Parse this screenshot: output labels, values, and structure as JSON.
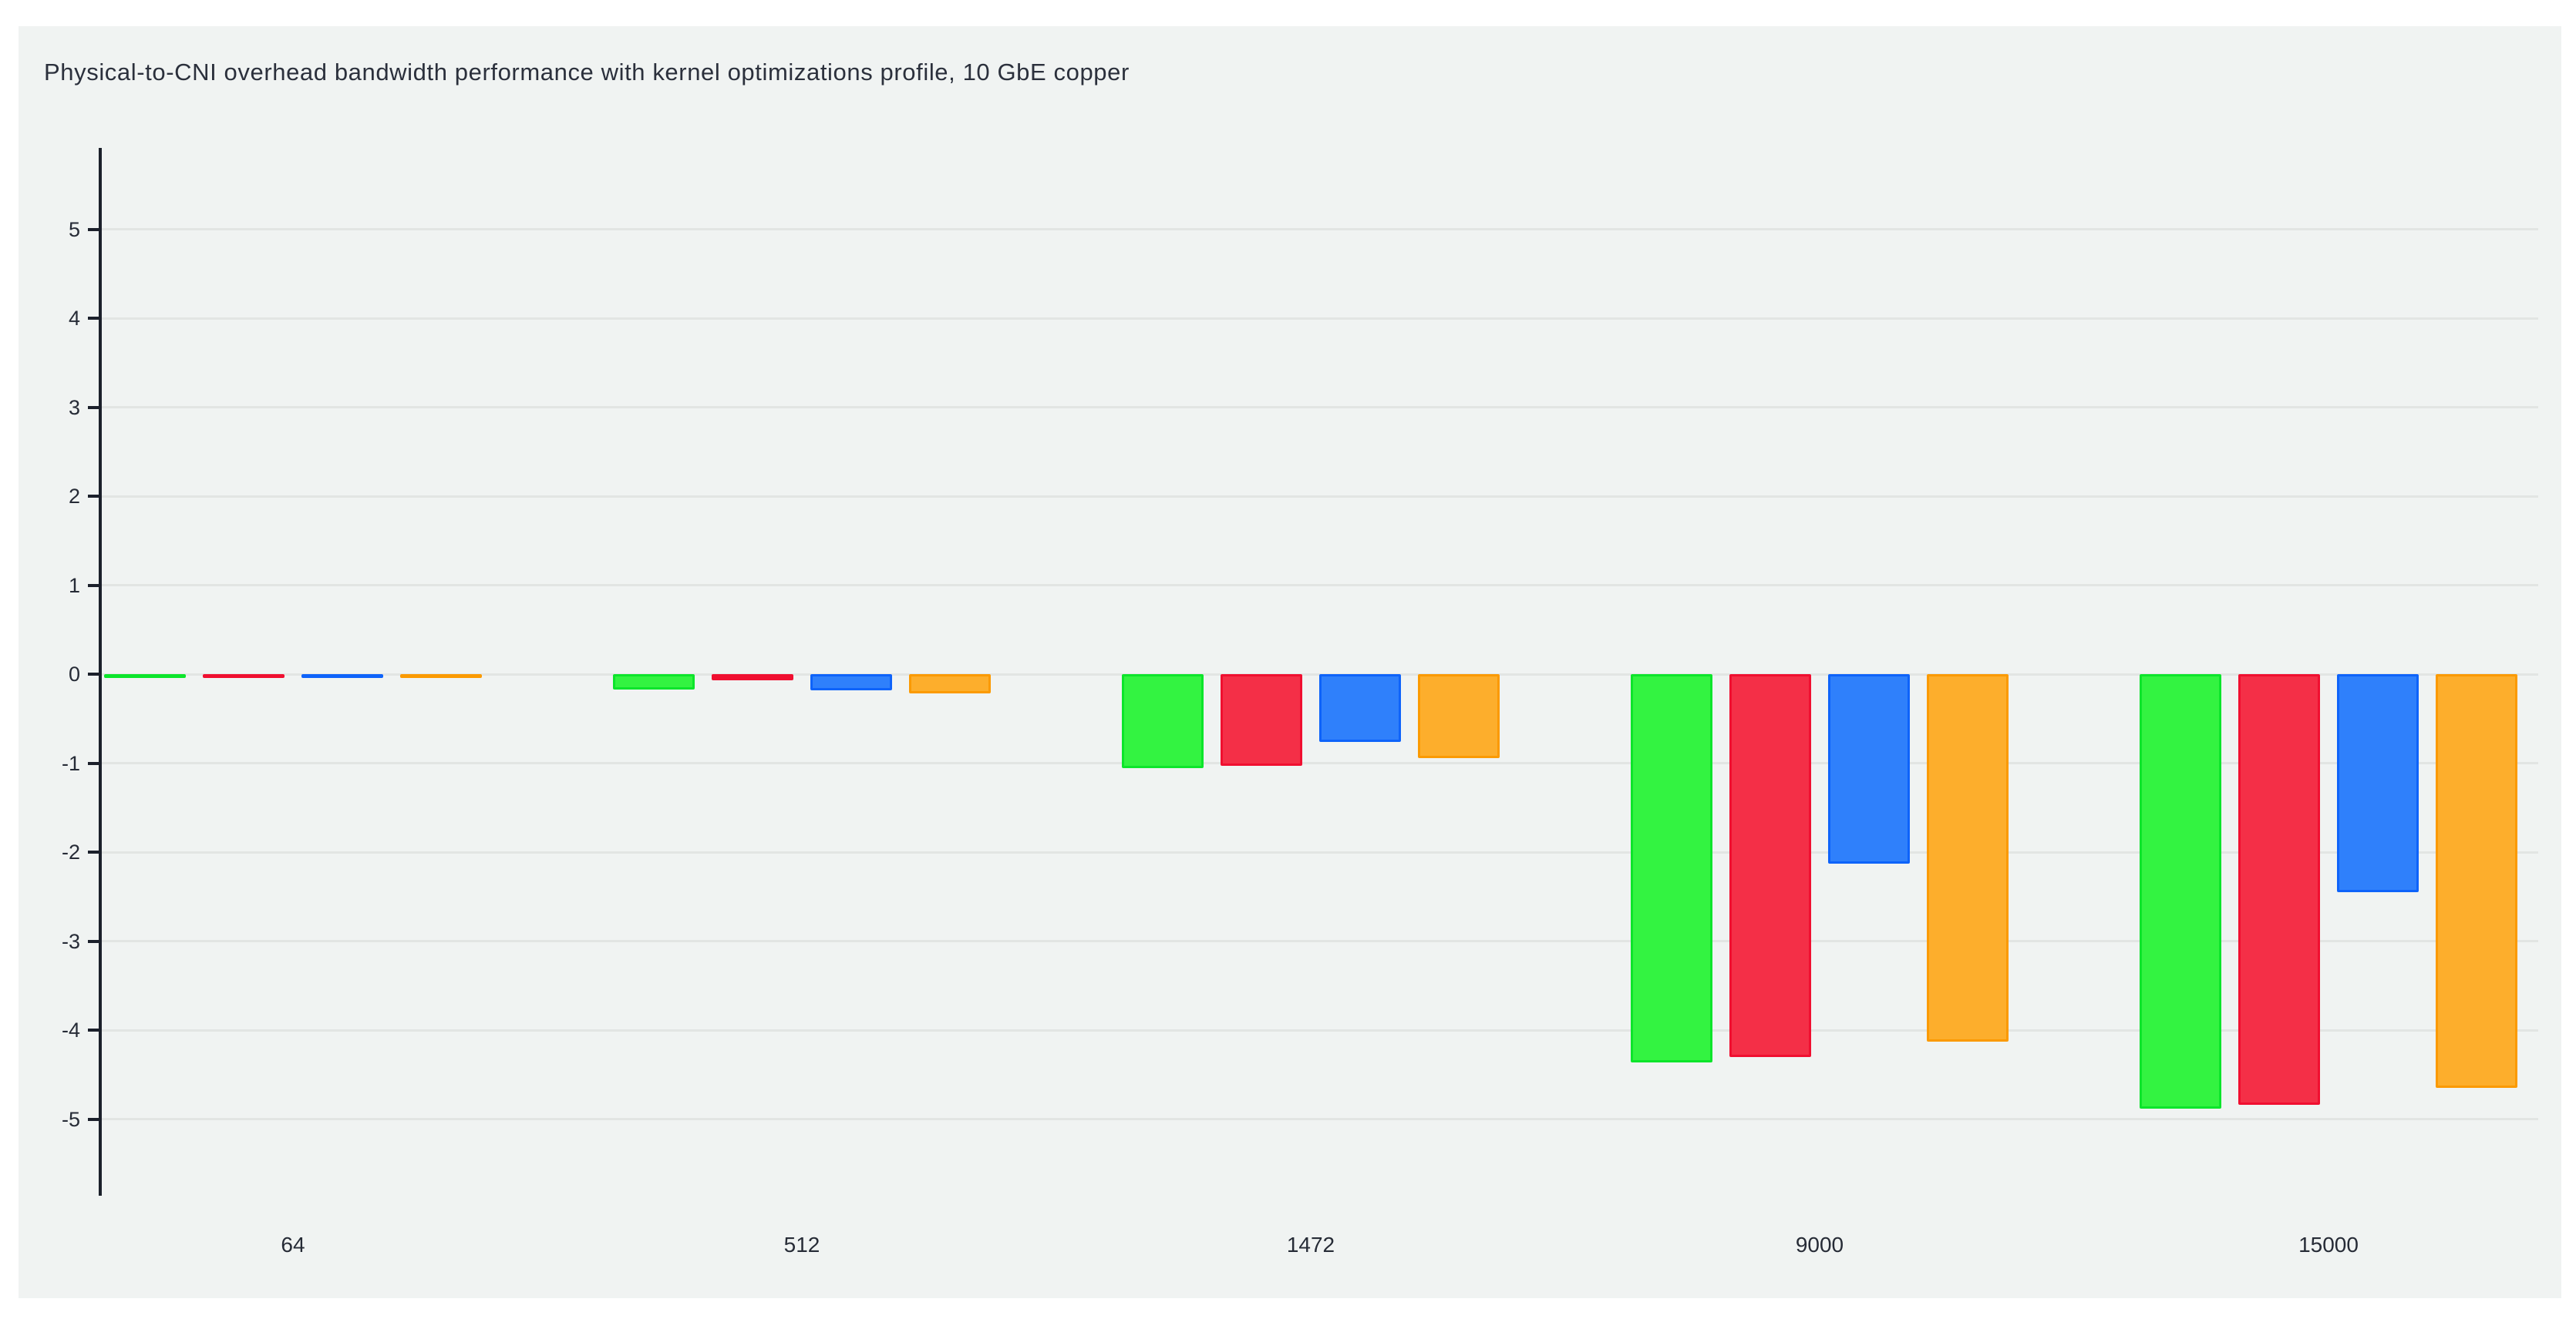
{
  "chart_data": {
    "type": "bar",
    "title": "Physical-to-CNI overhead bandwidth performance with kernel optimizations profile, 10 GbE copper",
    "categories": [
      "64",
      "512",
      "1472",
      "9000",
      "15000"
    ],
    "series": [
      {
        "name": "green",
        "fill": "#33f341",
        "stroke": "#0ce52b",
        "values": [
          -0.02,
          -0.17,
          -1.06,
          -4.36,
          -4.88
        ]
      },
      {
        "name": "red",
        "fill": "#f42f47",
        "stroke": "#f00f30",
        "values": [
          -0.03,
          -0.07,
          -1.03,
          -4.3,
          -4.84
        ]
      },
      {
        "name": "blue",
        "fill": "#2f80fb",
        "stroke": "#0e63fa",
        "values": [
          -0.03,
          -0.18,
          -0.76,
          -2.13,
          -2.45
        ]
      },
      {
        "name": "orange",
        "fill": "#fdae2c",
        "stroke": "#fb9a02",
        "values": [
          -0.04,
          -0.22,
          -0.94,
          -4.13,
          -4.65
        ]
      }
    ],
    "xlabel": "",
    "ylabel": "",
    "yticks": [
      5,
      4,
      3,
      2,
      1,
      0,
      -1,
      -2,
      -3,
      -4,
      -5
    ],
    "ylim": [
      -5.9,
      5.9
    ],
    "grid": true,
    "legend": false,
    "colors": {
      "page_background": "#ffffff",
      "panel_background": "#f0f3f2",
      "gridline": "#e2e5e3",
      "axis": "#1b202b",
      "text": "#262b36"
    }
  }
}
